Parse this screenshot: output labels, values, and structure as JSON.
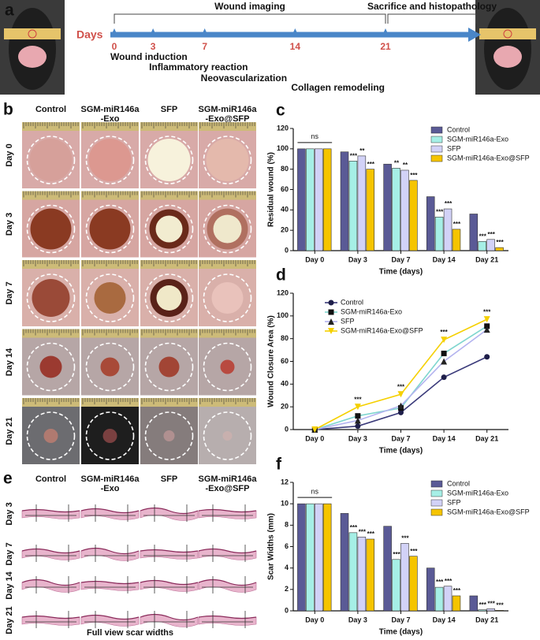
{
  "panel_a": {
    "letter": "a",
    "days_label": "Days",
    "days": [
      0,
      3,
      7,
      14,
      21
    ],
    "phases": [
      "Wound induction",
      "Inflammatory reaction",
      "Neovascularization",
      "Collagen remodeling"
    ],
    "imaging": "Wound imaging",
    "sacrifice": "Sacrifice and histopathology"
  },
  "panel_b": {
    "letter": "b",
    "columns": [
      "Control",
      "SGM-miR146a\n-Exo",
      "SFP",
      "SGM-miR146a\n-Exo@SFP"
    ],
    "rows": [
      "Day 0",
      "Day 3",
      "Day 7",
      "Day 14",
      "Day 21"
    ]
  },
  "panel_e": {
    "letter": "e",
    "columns": [
      "Control",
      "SGM-miR146a\n-Exo",
      "SFP",
      "SGM-miR146a\n-Exo@SFP"
    ],
    "rows": [
      "Day 3",
      "Day 7",
      "Day 14",
      "Day 21"
    ],
    "caption": "Full view scar widths"
  },
  "chart_data": [
    {
      "type": "bar",
      "letter": "c",
      "y_label": "Residual wound (%)",
      "x_label": "Time (days)",
      "categories": [
        "Day 0",
        "Day 3",
        "Day 7",
        "Day 14",
        "Day 21"
      ],
      "ylim": [
        0,
        120
      ],
      "yticks": [
        0,
        20,
        40,
        60,
        80,
        100,
        120
      ],
      "grid": false,
      "legend": "upper right",
      "bracket_label": "ns",
      "series": [
        {
          "name": "Control",
          "color": "#5a5a96",
          "values": [
            100,
            97,
            85,
            53,
            36
          ]
        },
        {
          "name": "SGM-miR146a-Exo",
          "color": "#a6efe6",
          "values": [
            100,
            88,
            81,
            33,
            9
          ],
          "annotations": [
            null,
            "***",
            "**",
            "***",
            "***"
          ]
        },
        {
          "name": "SFP",
          "color": "#d2d2f7",
          "values": [
            100,
            93,
            79,
            41,
            11
          ],
          "annotations": [
            null,
            "**",
            "**",
            "***",
            "***"
          ]
        },
        {
          "name": "SGM-miR146a-Exo@SFP",
          "color": "#f5c400",
          "values": [
            100,
            80,
            69,
            21,
            3
          ],
          "annotations": [
            null,
            "***",
            "***",
            "***",
            "***"
          ]
        }
      ]
    },
    {
      "type": "line",
      "letter": "d",
      "y_label": "Wound Closure  Area (%)",
      "x_label": "Time (days)",
      "categories": [
        "Day 0",
        "Day 3",
        "Day 7",
        "Day 14",
        "Day 21"
      ],
      "ylim": [
        0,
        120
      ],
      "yticks": [
        0,
        20,
        40,
        60,
        80,
        100,
        120
      ],
      "grid": false,
      "legend": "upper left",
      "annotations": [
        null,
        "***",
        "***",
        "***",
        "***"
      ],
      "series": [
        {
          "name": "Control",
          "color": "#1f1f4a",
          "line_color": "#3a3a7a",
          "marker": "circle",
          "values": [
            0,
            3,
            15,
            46,
            64
          ]
        },
        {
          "name": "SGM-miR146a-Exo",
          "color": "#111111",
          "line_color": "#7fd6cf",
          "marker": "square",
          "values": [
            0,
            12,
            19,
            67,
            91
          ]
        },
        {
          "name": "SFP",
          "color": "#222222",
          "line_color": "#b3b3ef",
          "marker": "triangle-up",
          "values": [
            0,
            8,
            21,
            60,
            88
          ]
        },
        {
          "name": "SGM-miR146a-Exo@SFP",
          "color": "#f5d000",
          "line_color": "#f5d000",
          "marker": "triangle-down",
          "values": [
            0,
            20,
            31,
            79,
            97
          ]
        }
      ]
    },
    {
      "type": "bar",
      "letter": "f",
      "y_label": "Scar Widths (mm)",
      "x_label": "Time (days)",
      "categories": [
        "Day 0",
        "Day 3",
        "Day 7",
        "Day 14",
        "Day 21"
      ],
      "ylim": [
        0,
        12
      ],
      "yticks": [
        0,
        2,
        4,
        6,
        8,
        10,
        12
      ],
      "grid": false,
      "legend": "upper right",
      "bracket_label": "ns",
      "series": [
        {
          "name": "Control",
          "color": "#5a5a96",
          "values": [
            10,
            9.1,
            7.9,
            4.0,
            1.4
          ]
        },
        {
          "name": "SGM-miR146a-Exo",
          "color": "#a6efe6",
          "values": [
            10,
            7.3,
            4.8,
            2.2,
            0.1
          ],
          "annotations": [
            null,
            "***",
            "***",
            "***",
            "***"
          ]
        },
        {
          "name": "SFP",
          "color": "#d2d2f7",
          "values": [
            10,
            6.9,
            6.3,
            2.3,
            0.2
          ],
          "annotations": [
            null,
            "***",
            "***",
            "***",
            "***"
          ]
        },
        {
          "name": "SGM-miR146a-Exo@SFP",
          "color": "#f5c400",
          "values": [
            10,
            6.7,
            5.1,
            1.4,
            0.05
          ],
          "annotations": [
            null,
            "***",
            "***",
            "***",
            "***"
          ]
        }
      ]
    }
  ]
}
